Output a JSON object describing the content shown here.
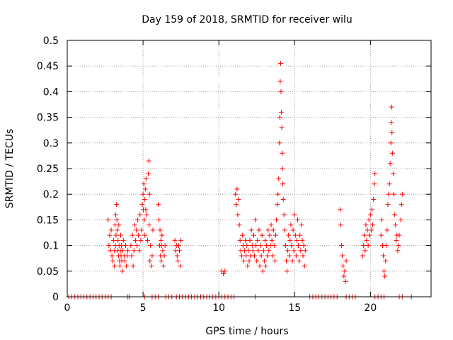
{
  "chart_data": {
    "type": "scatter",
    "title": "Day 159 of 2018, SRMTID for receiver wilu",
    "xlabel": "GPS time / hours",
    "ylabel": "SRMTID / TECUs",
    "xlim": [
      0,
      24
    ],
    "ylim": [
      0,
      0.5
    ],
    "x_ticks": [
      0,
      5,
      10,
      15,
      20
    ],
    "x_tick_labels": [
      "0",
      "5",
      "10",
      "15",
      "20"
    ],
    "y_ticks": [
      0,
      0.05,
      0.1,
      0.15,
      0.2,
      0.25,
      0.3,
      0.35,
      0.4,
      0.45,
      0.5
    ],
    "y_tick_labels": [
      "0",
      "0.05",
      "0.1",
      "0.15",
      "0.2",
      "0.25",
      "0.3",
      "0.35",
      "0.4",
      "0.45",
      "0.5"
    ],
    "grid": true,
    "marker": "+",
    "color": "#ff0000",
    "series": [
      {
        "name": "SRMTID",
        "points": [
          [
            0.1,
            0
          ],
          [
            0.3,
            0
          ],
          [
            0.5,
            0
          ],
          [
            0.7,
            0
          ],
          [
            0.9,
            0
          ],
          [
            1.1,
            0
          ],
          [
            1.3,
            0
          ],
          [
            1.5,
            0
          ],
          [
            1.7,
            0
          ],
          [
            1.9,
            0
          ],
          [
            2.1,
            0
          ],
          [
            2.3,
            0
          ],
          [
            2.5,
            0
          ],
          [
            2.7,
            0
          ],
          [
            2.9,
            0
          ],
          [
            4.0,
            0
          ],
          [
            4.1,
            0
          ],
          [
            5.1,
            0
          ],
          [
            5.6,
            0
          ],
          [
            5.8,
            0
          ],
          [
            6.0,
            0
          ],
          [
            6.5,
            0
          ],
          [
            6.7,
            0
          ],
          [
            6.9,
            0
          ],
          [
            7.2,
            0
          ],
          [
            7.4,
            0
          ],
          [
            7.6,
            0
          ],
          [
            7.8,
            0
          ],
          [
            8.0,
            0
          ],
          [
            8.2,
            0
          ],
          [
            8.4,
            0
          ],
          [
            8.6,
            0
          ],
          [
            8.8,
            0
          ],
          [
            9.0,
            0
          ],
          [
            9.2,
            0
          ],
          [
            9.4,
            0
          ],
          [
            9.6,
            0
          ],
          [
            9.8,
            0
          ],
          [
            10.0,
            0
          ],
          [
            10.2,
            0
          ],
          [
            10.4,
            0
          ],
          [
            10.6,
            0
          ],
          [
            10.8,
            0
          ],
          [
            11.0,
            0
          ],
          [
            12.4,
            0
          ],
          [
            16.0,
            0
          ],
          [
            16.2,
            0
          ],
          [
            16.4,
            0
          ],
          [
            16.6,
            0
          ],
          [
            16.8,
            0
          ],
          [
            17.0,
            0
          ],
          [
            17.2,
            0
          ],
          [
            17.4,
            0
          ],
          [
            17.6,
            0
          ],
          [
            17.8,
            0
          ],
          [
            18.4,
            0
          ],
          [
            18.6,
            0
          ],
          [
            18.8,
            0
          ],
          [
            19.0,
            0
          ],
          [
            20.3,
            0
          ],
          [
            20.5,
            0
          ],
          [
            20.7,
            0
          ],
          [
            20.9,
            0
          ],
          [
            21.9,
            0
          ],
          [
            22.1,
            0
          ],
          [
            22.7,
            0
          ],
          [
            2.7,
            0.15
          ],
          [
            2.75,
            0.1
          ],
          [
            2.8,
            0.12
          ],
          [
            2.85,
            0.09
          ],
          [
            2.9,
            0.13
          ],
          [
            2.95,
            0.08
          ],
          [
            3.0,
            0.07
          ],
          [
            3.05,
            0.11
          ],
          [
            3.1,
            0.06
          ],
          [
            3.12,
            0.09
          ],
          [
            3.15,
            0.14
          ],
          [
            3.18,
            0.1
          ],
          [
            3.2,
            0.16
          ],
          [
            3.22,
            0.12
          ],
          [
            3.25,
            0.18
          ],
          [
            3.28,
            0.15
          ],
          [
            3.3,
            0.13
          ],
          [
            3.32,
            0.09
          ],
          [
            3.35,
            0.11
          ],
          [
            3.38,
            0.08
          ],
          [
            3.4,
            0.14
          ],
          [
            3.42,
            0.1
          ],
          [
            3.45,
            0.07
          ],
          [
            3.48,
            0.06
          ],
          [
            3.5,
            0.09
          ],
          [
            3.52,
            0.12
          ],
          [
            3.55,
            0.08
          ],
          [
            3.58,
            0.1
          ],
          [
            3.6,
            0.07
          ],
          [
            3.62,
            0.05
          ],
          [
            3.65,
            0.09
          ],
          [
            3.7,
            0.11
          ],
          [
            3.75,
            0.08
          ],
          [
            3.8,
            0.07
          ],
          [
            3.85,
            0.1
          ],
          [
            3.9,
            0.06
          ],
          [
            3.95,
            0.08
          ],
          [
            4.0,
            0.09
          ],
          [
            4.2,
            0.1
          ],
          [
            4.25,
            0.08
          ],
          [
            4.3,
            0.12
          ],
          [
            4.35,
            0.06
          ],
          [
            4.4,
            0.09
          ],
          [
            4.45,
            0.14
          ],
          [
            4.5,
            0.11
          ],
          [
            4.55,
            0.13
          ],
          [
            4.6,
            0.1
          ],
          [
            4.65,
            0.15
          ],
          [
            4.7,
            0.12
          ],
          [
            4.75,
            0.09
          ],
          [
            4.8,
            0.16
          ],
          [
            4.85,
            0.11
          ],
          [
            4.9,
            0.13
          ],
          [
            4.95,
            0.18
          ],
          [
            5.0,
            0.2
          ],
          [
            5.02,
            0.17
          ],
          [
            5.05,
            0.22
          ],
          [
            5.08,
            0.15
          ],
          [
            5.1,
            0.19
          ],
          [
            5.12,
            0.12
          ],
          [
            5.15,
            0.21
          ],
          [
            5.18,
            0.17
          ],
          [
            5.2,
            0.23
          ],
          [
            5.25,
            0.16
          ],
          [
            5.3,
            0.11
          ],
          [
            5.35,
            0.24
          ],
          [
            5.38,
            0.265
          ],
          [
            5.4,
            0.14
          ],
          [
            5.42,
            0.2
          ],
          [
            5.45,
            0.07
          ],
          [
            5.5,
            0.1
          ],
          [
            5.55,
            0.06
          ],
          [
            5.6,
            0.08
          ],
          [
            5.65,
            0.13
          ],
          [
            6.0,
            0.18
          ],
          [
            6.05,
            0.15
          ],
          [
            6.1,
            0.1
          ],
          [
            6.12,
            0.13
          ],
          [
            6.15,
            0.08
          ],
          [
            6.18,
            0.11
          ],
          [
            6.2,
            0.07
          ],
          [
            6.22,
            0.1
          ],
          [
            6.25,
            0.12
          ],
          [
            6.3,
            0.09
          ],
          [
            6.35,
            0.06
          ],
          [
            6.4,
            0.08
          ],
          [
            6.45,
            0.1
          ],
          [
            7.1,
            0.11
          ],
          [
            7.15,
            0.09
          ],
          [
            7.2,
            0.1
          ],
          [
            7.25,
            0.08
          ],
          [
            7.3,
            0.07
          ],
          [
            7.35,
            0.1
          ],
          [
            7.4,
            0.09
          ],
          [
            7.45,
            0.06
          ],
          [
            7.5,
            0.11
          ],
          [
            10.2,
            0.05
          ],
          [
            10.3,
            0.045
          ],
          [
            10.4,
            0.05
          ],
          [
            11.1,
            0.2
          ],
          [
            11.15,
            0.18
          ],
          [
            11.2,
            0.21
          ],
          [
            11.25,
            0.16
          ],
          [
            11.3,
            0.19
          ],
          [
            11.35,
            0.14
          ],
          [
            11.4,
            0.11
          ],
          [
            11.45,
            0.09
          ],
          [
            11.5,
            0.08
          ],
          [
            11.55,
            0.12
          ],
          [
            11.6,
            0.1
          ],
          [
            11.65,
            0.07
          ],
          [
            11.7,
            0.09
          ],
          [
            11.75,
            0.11
          ],
          [
            11.8,
            0.08
          ],
          [
            11.85,
            0.1
          ],
          [
            11.9,
            0.06
          ],
          [
            11.95,
            0.09
          ],
          [
            12.0,
            0.07
          ],
          [
            12.05,
            0.11
          ],
          [
            12.1,
            0.08
          ],
          [
            12.15,
            0.13
          ],
          [
            12.2,
            0.1
          ],
          [
            12.25,
            0.09
          ],
          [
            12.3,
            0.12
          ],
          [
            12.35,
            0.08
          ],
          [
            12.4,
            0.15
          ],
          [
            12.45,
            0.1
          ],
          [
            12.5,
            0.07
          ],
          [
            12.55,
            0.11
          ],
          [
            12.6,
            0.09
          ],
          [
            12.65,
            0.13
          ],
          [
            12.7,
            0.06
          ],
          [
            12.75,
            0.1
          ],
          [
            12.8,
            0.08
          ],
          [
            12.85,
            0.12
          ],
          [
            12.9,
            0.05
          ],
          [
            12.95,
            0.09
          ],
          [
            13.0,
            0.07
          ],
          [
            13.05,
            0.11
          ],
          [
            13.1,
            0.06
          ],
          [
            13.15,
            0.1
          ],
          [
            13.2,
            0.08
          ],
          [
            13.25,
            0.13
          ],
          [
            13.3,
            0.09
          ],
          [
            13.35,
            0.12
          ],
          [
            13.4,
            0.1
          ],
          [
            13.45,
            0.14
          ],
          [
            13.5,
            0.11
          ],
          [
            13.55,
            0.08
          ],
          [
            13.6,
            0.13
          ],
          [
            13.65,
            0.1
          ],
          [
            13.7,
            0.07
          ],
          [
            13.75,
            0.12
          ],
          [
            13.8,
            0.15
          ],
          [
            13.85,
            0.18
          ],
          [
            13.9,
            0.2
          ],
          [
            13.95,
            0.23
          ],
          [
            14.0,
            0.3
          ],
          [
            14.02,
            0.35
          ],
          [
            14.05,
            0.42
          ],
          [
            14.08,
            0.455
          ],
          [
            14.1,
            0.4
          ],
          [
            14.12,
            0.36
          ],
          [
            14.15,
            0.33
          ],
          [
            14.18,
            0.28
          ],
          [
            14.2,
            0.25
          ],
          [
            14.22,
            0.22
          ],
          [
            14.25,
            0.19
          ],
          [
            14.3,
            0.16
          ],
          [
            14.35,
            0.13
          ],
          [
            14.4,
            0.1
          ],
          [
            14.45,
            0.07
          ],
          [
            14.5,
            0.05
          ],
          [
            14.55,
            0.09
          ],
          [
            14.6,
            0.12
          ],
          [
            14.65,
            0.08
          ],
          [
            14.7,
            0.11
          ],
          [
            14.75,
            0.14
          ],
          [
            14.8,
            0.1
          ],
          [
            14.85,
            0.07
          ],
          [
            14.9,
            0.13
          ],
          [
            14.95,
            0.09
          ],
          [
            15.0,
            0.16
          ],
          [
            15.05,
            0.12
          ],
          [
            15.1,
            0.08
          ],
          [
            15.15,
            0.11
          ],
          [
            15.2,
            0.15
          ],
          [
            15.25,
            0.1
          ],
          [
            15.3,
            0.07
          ],
          [
            15.35,
            0.12
          ],
          [
            15.4,
            0.09
          ],
          [
            15.45,
            0.14
          ],
          [
            15.5,
            0.11
          ],
          [
            15.55,
            0.08
          ],
          [
            15.6,
            0.1
          ],
          [
            15.65,
            0.06
          ],
          [
            15.7,
            0.09
          ],
          [
            18.0,
            0.17
          ],
          [
            18.05,
            0.14
          ],
          [
            18.1,
            0.1
          ],
          [
            18.15,
            0.08
          ],
          [
            18.2,
            0.06
          ],
          [
            18.25,
            0.04
          ],
          [
            18.3,
            0.05
          ],
          [
            18.35,
            0.03
          ],
          [
            18.4,
            0.07
          ],
          [
            19.5,
            0.08
          ],
          [
            19.55,
            0.1
          ],
          [
            19.6,
            0.12
          ],
          [
            19.65,
            0.09
          ],
          [
            19.7,
            0.14
          ],
          [
            19.75,
            0.11
          ],
          [
            19.8,
            0.13
          ],
          [
            19.85,
            0.1
          ],
          [
            19.9,
            0.15
          ],
          [
            19.95,
            0.12
          ],
          [
            20.0,
            0.16
          ],
          [
            20.05,
            0.13
          ],
          [
            20.1,
            0.17
          ],
          [
            20.15,
            0.14
          ],
          [
            20.2,
            0.19
          ],
          [
            20.25,
            0.22
          ],
          [
            20.3,
            0.24
          ],
          [
            20.7,
            0.12
          ],
          [
            20.75,
            0.15
          ],
          [
            20.8,
            0.1
          ],
          [
            20.85,
            0.08
          ],
          [
            20.9,
            0.05
          ],
          [
            20.95,
            0.04
          ],
          [
            21.0,
            0.07
          ],
          [
            21.05,
            0.1
          ],
          [
            21.1,
            0.13
          ],
          [
            21.15,
            0.18
          ],
          [
            21.2,
            0.2
          ],
          [
            21.25,
            0.22
          ],
          [
            21.3,
            0.26
          ],
          [
            21.35,
            0.3
          ],
          [
            21.38,
            0.34
          ],
          [
            21.4,
            0.37
          ],
          [
            21.42,
            0.32
          ],
          [
            21.45,
            0.28
          ],
          [
            21.5,
            0.24
          ],
          [
            21.55,
            0.2
          ],
          [
            21.6,
            0.16
          ],
          [
            21.65,
            0.14
          ],
          [
            21.7,
            0.11
          ],
          [
            21.75,
            0.12
          ],
          [
            21.8,
            0.09
          ],
          [
            21.85,
            0.1
          ],
          [
            21.9,
            0.12
          ],
          [
            22.0,
            0.15
          ],
          [
            22.05,
            0.18
          ],
          [
            22.1,
            0.2
          ]
        ]
      }
    ]
  }
}
